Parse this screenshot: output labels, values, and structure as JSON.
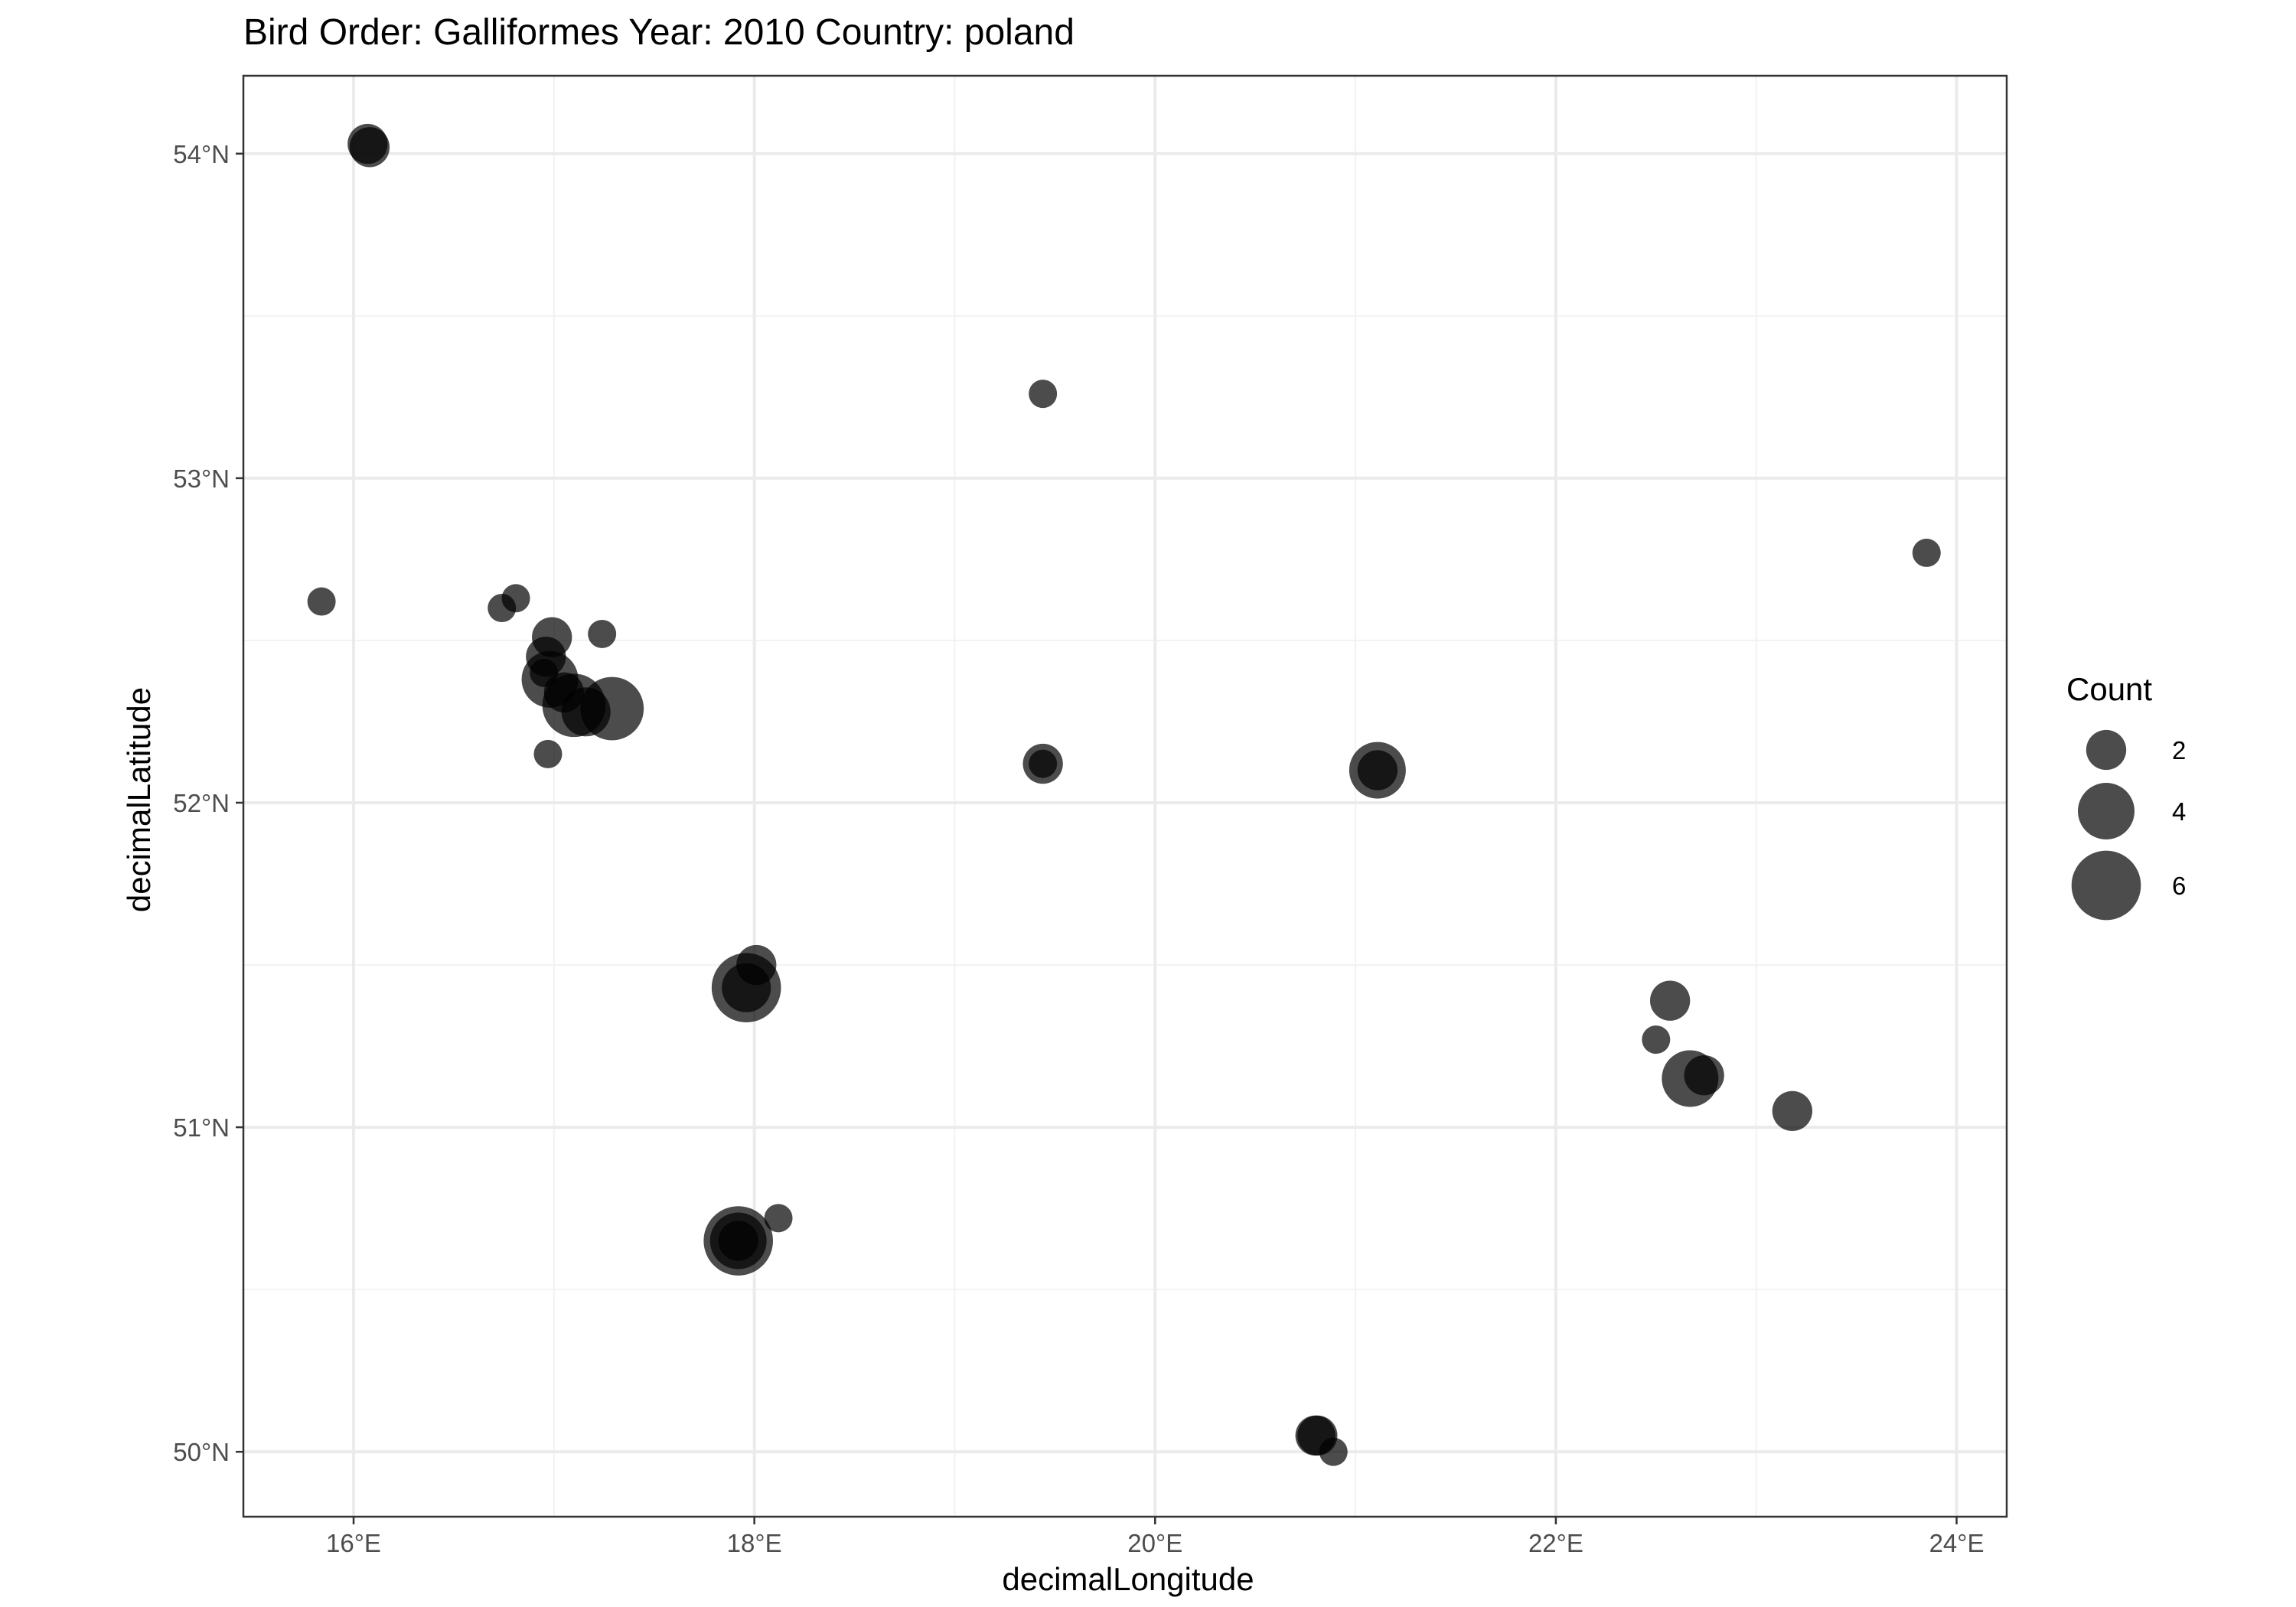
{
  "chart_data": {
    "type": "scatter",
    "title": "Bird Order: Galliformes Year: 2010 Country: poland",
    "xlabel": "decimalLongitude",
    "ylabel": "decimalLatitude",
    "xlim": [
      15.45,
      24.25
    ],
    "ylim": [
      49.8,
      54.24
    ],
    "x_ticks": [
      16,
      18,
      20,
      22,
      24
    ],
    "x_tick_labels": [
      "16°E",
      "18°E",
      "20°E",
      "22°E",
      "24°E"
    ],
    "y_ticks": [
      50,
      51,
      52,
      53,
      54
    ],
    "y_tick_labels": [
      "50°N",
      "51°N",
      "52°N",
      "53°N",
      "54°N"
    ],
    "grid": true,
    "size_variable": "Count",
    "legend": {
      "title": "Count",
      "placement": "right",
      "entries": [
        {
          "label": "2",
          "value": 2
        },
        {
          "label": "4",
          "value": 4
        },
        {
          "label": "6",
          "value": 6
        }
      ]
    },
    "point_color": "#000000",
    "point_alpha": 0.7,
    "points": [
      {
        "x": 16.07,
        "y": 54.03,
        "count": 2
      },
      {
        "x": 16.08,
        "y": 54.02,
        "count": 2
      },
      {
        "x": 19.44,
        "y": 53.26,
        "count": 1
      },
      {
        "x": 23.85,
        "y": 52.77,
        "count": 1
      },
      {
        "x": 15.84,
        "y": 52.62,
        "count": 1
      },
      {
        "x": 16.74,
        "y": 52.6,
        "count": 1
      },
      {
        "x": 16.81,
        "y": 52.63,
        "count": 1
      },
      {
        "x": 16.99,
        "y": 52.51,
        "count": 2
      },
      {
        "x": 17.24,
        "y": 52.52,
        "count": 1
      },
      {
        "x": 16.96,
        "y": 52.45,
        "count": 2
      },
      {
        "x": 16.95,
        "y": 52.4,
        "count": 1
      },
      {
        "x": 16.98,
        "y": 52.38,
        "count": 4
      },
      {
        "x": 17.05,
        "y": 52.34,
        "count": 2
      },
      {
        "x": 17.1,
        "y": 52.3,
        "count": 5
      },
      {
        "x": 17.16,
        "y": 52.28,
        "count": 3
      },
      {
        "x": 17.29,
        "y": 52.29,
        "count": 5
      },
      {
        "x": 16.97,
        "y": 52.15,
        "count": 1
      },
      {
        "x": 19.44,
        "y": 52.12,
        "count": 2
      },
      {
        "x": 19.44,
        "y": 52.12,
        "count": 1
      },
      {
        "x": 21.11,
        "y": 52.1,
        "count": 4
      },
      {
        "x": 21.11,
        "y": 52.1,
        "count": 2
      },
      {
        "x": 18.01,
        "y": 51.5,
        "count": 2
      },
      {
        "x": 17.96,
        "y": 51.43,
        "count": 6
      },
      {
        "x": 17.96,
        "y": 51.43,
        "count": 3
      },
      {
        "x": 22.57,
        "y": 51.39,
        "count": 2
      },
      {
        "x": 22.5,
        "y": 51.27,
        "count": 1
      },
      {
        "x": 22.74,
        "y": 51.16,
        "count": 2
      },
      {
        "x": 22.67,
        "y": 51.15,
        "count": 4
      },
      {
        "x": 23.18,
        "y": 51.05,
        "count": 2
      },
      {
        "x": 18.12,
        "y": 50.72,
        "count": 1
      },
      {
        "x": 17.92,
        "y": 50.65,
        "count": 6
      },
      {
        "x": 17.92,
        "y": 50.65,
        "count": 4
      },
      {
        "x": 17.92,
        "y": 50.65,
        "count": 2
      },
      {
        "x": 20.8,
        "y": 50.05,
        "count": 2
      },
      {
        "x": 20.81,
        "y": 50.05,
        "count": 2
      },
      {
        "x": 20.89,
        "y": 50.0,
        "count": 1
      }
    ]
  }
}
